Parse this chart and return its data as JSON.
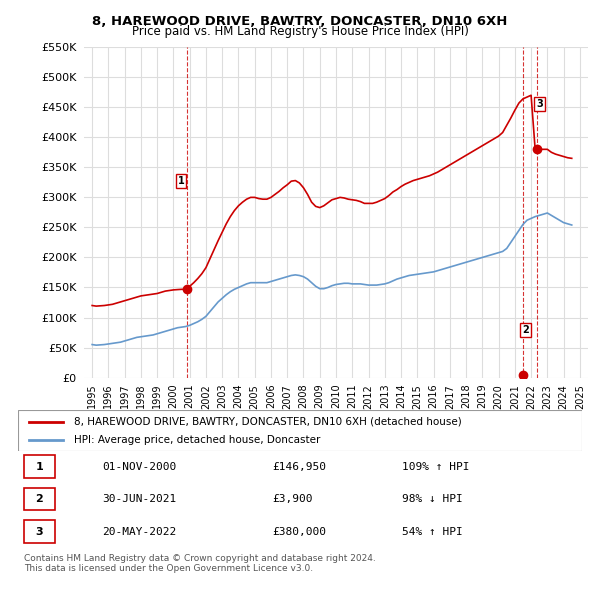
{
  "title": "8, HAREWOOD DRIVE, BAWTRY, DONCASTER, DN10 6XH",
  "subtitle": "Price paid vs. HM Land Registry's House Price Index (HPI)",
  "ylabel_ticks": [
    "£0",
    "£50K",
    "£100K",
    "£150K",
    "£200K",
    "£250K",
    "£300K",
    "£350K",
    "£400K",
    "£450K",
    "£500K",
    "£550K"
  ],
  "ylim": [
    0,
    550000
  ],
  "yticks": [
    0,
    50000,
    100000,
    150000,
    200000,
    250000,
    300000,
    350000,
    400000,
    450000,
    500000,
    550000
  ],
  "xlim_start": 1994.5,
  "xlim_end": 2025.5,
  "sale_dates": [
    2000.833,
    2021.5,
    2022.375
  ],
  "sale_prices": [
    146950,
    3900,
    380000
  ],
  "sale_labels": [
    "1",
    "2",
    "3"
  ],
  "red_line_color": "#cc0000",
  "blue_line_color": "#6699cc",
  "vline_color": "#cc0000",
  "marker_dot_color": "#cc0000",
  "background_color": "#ffffff",
  "grid_color": "#dddddd",
  "legend_line1": "8, HAREWOOD DRIVE, BAWTRY, DONCASTER, DN10 6XH (detached house)",
  "legend_line2": "HPI: Average price, detached house, Doncaster",
  "table_rows": [
    [
      "1",
      "01-NOV-2000",
      "£146,950",
      "109% ↑ HPI"
    ],
    [
      "2",
      "30-JUN-2021",
      "£3,900",
      "98% ↓ HPI"
    ],
    [
      "3",
      "20-MAY-2022",
      "£380,000",
      "54% ↑ HPI"
    ]
  ],
  "footnote": "Contains HM Land Registry data © Crown copyright and database right 2024.\nThis data is licensed under the Open Government Licence v3.0.",
  "hpi_data": {
    "years": [
      1995,
      1995.25,
      1995.5,
      1995.75,
      1996,
      1996.25,
      1996.5,
      1996.75,
      1997,
      1997.25,
      1997.5,
      1997.75,
      1998,
      1998.25,
      1998.5,
      1998.75,
      1999,
      1999.25,
      1999.5,
      1999.75,
      2000,
      2000.25,
      2000.5,
      2000.75,
      2001,
      2001.25,
      2001.5,
      2001.75,
      2002,
      2002.25,
      2002.5,
      2002.75,
      2003,
      2003.25,
      2003.5,
      2003.75,
      2004,
      2004.25,
      2004.5,
      2004.75,
      2005,
      2005.25,
      2005.5,
      2005.75,
      2006,
      2006.25,
      2006.5,
      2006.75,
      2007,
      2007.25,
      2007.5,
      2007.75,
      2008,
      2008.25,
      2008.5,
      2008.75,
      2009,
      2009.25,
      2009.5,
      2009.75,
      2010,
      2010.25,
      2010.5,
      2010.75,
      2011,
      2011.25,
      2011.5,
      2011.75,
      2012,
      2012.25,
      2012.5,
      2012.75,
      2013,
      2013.25,
      2013.5,
      2013.75,
      2014,
      2014.25,
      2014.5,
      2014.75,
      2015,
      2015.25,
      2015.5,
      2015.75,
      2016,
      2016.25,
      2016.5,
      2016.75,
      2017,
      2017.25,
      2017.5,
      2017.75,
      2018,
      2018.25,
      2018.5,
      2018.75,
      2019,
      2019.25,
      2019.5,
      2019.75,
      2020,
      2020.25,
      2020.5,
      2020.75,
      2021,
      2021.25,
      2021.5,
      2021.75,
      2022,
      2022.25,
      2022.5,
      2022.75,
      2023,
      2023.25,
      2023.5,
      2023.75,
      2024,
      2024.25,
      2024.5
    ],
    "values": [
      55000,
      54000,
      54500,
      55000,
      56000,
      57000,
      58000,
      59000,
      61000,
      63000,
      65000,
      67000,
      68000,
      69000,
      70000,
      71000,
      73000,
      75000,
      77000,
      79000,
      81000,
      83000,
      84000,
      85000,
      87000,
      90000,
      93000,
      97000,
      102000,
      110000,
      118000,
      126000,
      132000,
      138000,
      143000,
      147000,
      150000,
      153000,
      156000,
      158000,
      158000,
      158000,
      158000,
      158000,
      160000,
      162000,
      164000,
      166000,
      168000,
      170000,
      171000,
      170000,
      168000,
      164000,
      158000,
      152000,
      148000,
      148000,
      150000,
      153000,
      155000,
      156000,
      157000,
      157000,
      156000,
      156000,
      156000,
      155000,
      154000,
      154000,
      154000,
      155000,
      156000,
      158000,
      161000,
      164000,
      166000,
      168000,
      170000,
      171000,
      172000,
      173000,
      174000,
      175000,
      176000,
      178000,
      180000,
      182000,
      184000,
      186000,
      188000,
      190000,
      192000,
      194000,
      196000,
      198000,
      200000,
      202000,
      204000,
      206000,
      208000,
      210000,
      215000,
      225000,
      235000,
      245000,
      255000,
      262000,
      265000,
      268000,
      270000,
      272000,
      274000,
      270000,
      266000,
      262000,
      258000,
      256000,
      254000
    ]
  },
  "red_line_data": {
    "years": [
      1995,
      1995.25,
      1995.5,
      1995.75,
      1996,
      1996.25,
      1996.5,
      1996.75,
      1997,
      1997.25,
      1997.5,
      1997.75,
      1998,
      1998.25,
      1998.5,
      1998.75,
      1999,
      1999.25,
      1999.5,
      1999.75,
      2000,
      2000.25,
      2000.5,
      2000.75,
      2000.833,
      2001,
      2001.25,
      2001.5,
      2001.75,
      2002,
      2002.25,
      2002.5,
      2002.75,
      2003,
      2003.25,
      2003.5,
      2003.75,
      2004,
      2004.25,
      2004.5,
      2004.75,
      2005,
      2005.25,
      2005.5,
      2005.75,
      2006,
      2006.25,
      2006.5,
      2006.75,
      2007,
      2007.25,
      2007.5,
      2007.75,
      2008,
      2008.25,
      2008.5,
      2008.75,
      2009,
      2009.25,
      2009.5,
      2009.75,
      2010,
      2010.25,
      2010.5,
      2010.75,
      2011,
      2011.25,
      2011.5,
      2011.75,
      2012,
      2012.25,
      2012.5,
      2012.75,
      2013,
      2013.25,
      2013.5,
      2013.75,
      2014,
      2014.25,
      2014.5,
      2014.75,
      2015,
      2015.25,
      2015.5,
      2015.75,
      2016,
      2016.25,
      2016.5,
      2016.75,
      2017,
      2017.25,
      2017.5,
      2017.75,
      2018,
      2018.25,
      2018.5,
      2018.75,
      2019,
      2019.25,
      2019.5,
      2019.75,
      2020,
      2020.25,
      2020.5,
      2020.75,
      2021,
      2021.25,
      2021.5,
      2021.75,
      2022,
      2022.25,
      2022.375,
      2022.5,
      2022.75,
      2023,
      2023.25,
      2023.5,
      2023.75,
      2024,
      2024.25,
      2024.5
    ],
    "values": [
      120000,
      119000,
      119500,
      120000,
      121000,
      122000,
      124000,
      126000,
      128000,
      130000,
      132000,
      134000,
      136000,
      137000,
      138000,
      139000,
      140000,
      142000,
      144000,
      145000,
      146000,
      146500,
      146950,
      146950,
      146950,
      152000,
      158000,
      165000,
      173000,
      183000,
      198000,
      213000,
      228000,
      242000,
      256000,
      268000,
      278000,
      286000,
      292000,
      297000,
      300000,
      300000,
      298000,
      297000,
      297000,
      300000,
      305000,
      310000,
      316000,
      321000,
      327000,
      328000,
      324000,
      316000,
      305000,
      292000,
      285000,
      283000,
      286000,
      291000,
      296000,
      298000,
      300000,
      299000,
      297000,
      296000,
      295000,
      293000,
      290000,
      290000,
      290000,
      292000,
      295000,
      298000,
      303000,
      309000,
      313000,
      318000,
      322000,
      325000,
      328000,
      330000,
      332000,
      334000,
      336000,
      339000,
      342000,
      346000,
      350000,
      354000,
      358000,
      362000,
      366000,
      370000,
      374000,
      378000,
      382000,
      386000,
      390000,
      394000,
      398000,
      402000,
      408000,
      420000,
      432000,
      445000,
      457000,
      464000,
      467000,
      470000,
      380000,
      380000,
      380000,
      380000,
      380000,
      375000,
      372000,
      370000,
      368000,
      366000,
      365000
    ]
  }
}
